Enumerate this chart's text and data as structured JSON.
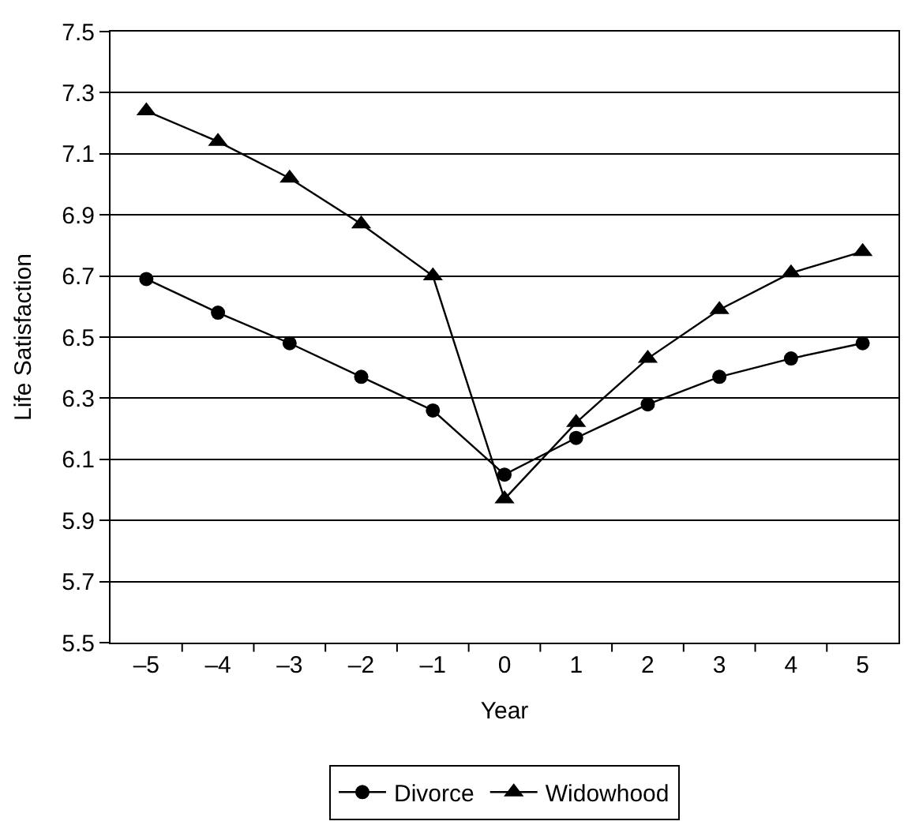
{
  "chart_data": {
    "type": "line",
    "xlabel": "Year",
    "ylabel": "Life Satisfaction",
    "categories": [
      "–5",
      "–4",
      "–3",
      "–2",
      "–1",
      "0",
      "1",
      "2",
      "3",
      "4",
      "5"
    ],
    "series": [
      {
        "name": "Divorce",
        "color": "#000000",
        "marker": "circle",
        "values": [
          6.69,
          6.58,
          6.48,
          6.37,
          6.26,
          6.05,
          6.17,
          6.28,
          6.37,
          6.43,
          6.48
        ]
      },
      {
        "name": "Widowhood",
        "color": "#000000",
        "marker": "triangle",
        "values": [
          7.24,
          7.14,
          7.02,
          6.87,
          6.7,
          5.97,
          6.22,
          6.43,
          6.59,
          6.71,
          6.78
        ]
      }
    ],
    "ylim": [
      5.5,
      7.5
    ],
    "yticks": [
      5.5,
      5.7,
      5.9,
      6.1,
      6.3,
      6.5,
      6.7,
      6.9,
      7.1,
      7.3,
      7.5
    ],
    "grid": "y",
    "legend": "bottom",
    "line_style": "solid"
  }
}
